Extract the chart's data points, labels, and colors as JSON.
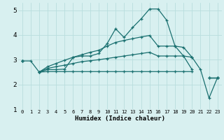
{
  "xlabel": "Humidex (Indice chaleur)",
  "background_color": "#d8f0f0",
  "grid_color": "#b8dede",
  "line_color": "#1a7070",
  "xlim": [
    -0.5,
    23.5
  ],
  "ylim": [
    1,
    5.3
  ],
  "line1_y": [
    2.95,
    2.95,
    2.5,
    2.6,
    2.6,
    2.62,
    3.1,
    3.15,
    3.15,
    3.25,
    3.65,
    4.25,
    3.9,
    4.3,
    4.65,
    5.05,
    5.05,
    4.6,
    3.55,
    3.5,
    3.1,
    2.6,
    1.45,
    2.28
  ],
  "line2_y": [
    2.95,
    null,
    2.5,
    2.52,
    2.52,
    2.52,
    2.52,
    2.52,
    2.52,
    2.52,
    2.52,
    2.52,
    2.52,
    2.52,
    2.52,
    2.52,
    2.52,
    2.52,
    2.52,
    2.52,
    2.52,
    null,
    2.28,
    2.28
  ],
  "line3_y": [
    2.95,
    null,
    2.5,
    2.65,
    2.72,
    2.78,
    2.85,
    2.92,
    2.96,
    3.0,
    3.05,
    3.1,
    3.15,
    3.2,
    3.25,
    3.3,
    3.15,
    3.15,
    3.15,
    3.15,
    3.1,
    null,
    2.28,
    2.28
  ],
  "line4_y": [
    2.95,
    null,
    2.5,
    2.72,
    2.85,
    2.98,
    3.1,
    3.2,
    3.3,
    3.38,
    3.55,
    3.7,
    3.78,
    3.85,
    3.92,
    3.98,
    3.55,
    3.55,
    3.55,
    3.15,
    2.6,
    null,
    2.28,
    2.28
  ],
  "xtick_labels": [
    "0",
    "1",
    "2",
    "3",
    "4",
    "5",
    "6",
    "7",
    "8",
    "9",
    "10",
    "11",
    "12",
    "13",
    "14",
    "15",
    "16",
    "17",
    "18",
    "19",
    "20",
    "21",
    "22",
    "23"
  ],
  "ytick_labels": [
    "1",
    "2",
    "3",
    "4",
    "5"
  ],
  "yticks": [
    1,
    2,
    3,
    4,
    5
  ]
}
